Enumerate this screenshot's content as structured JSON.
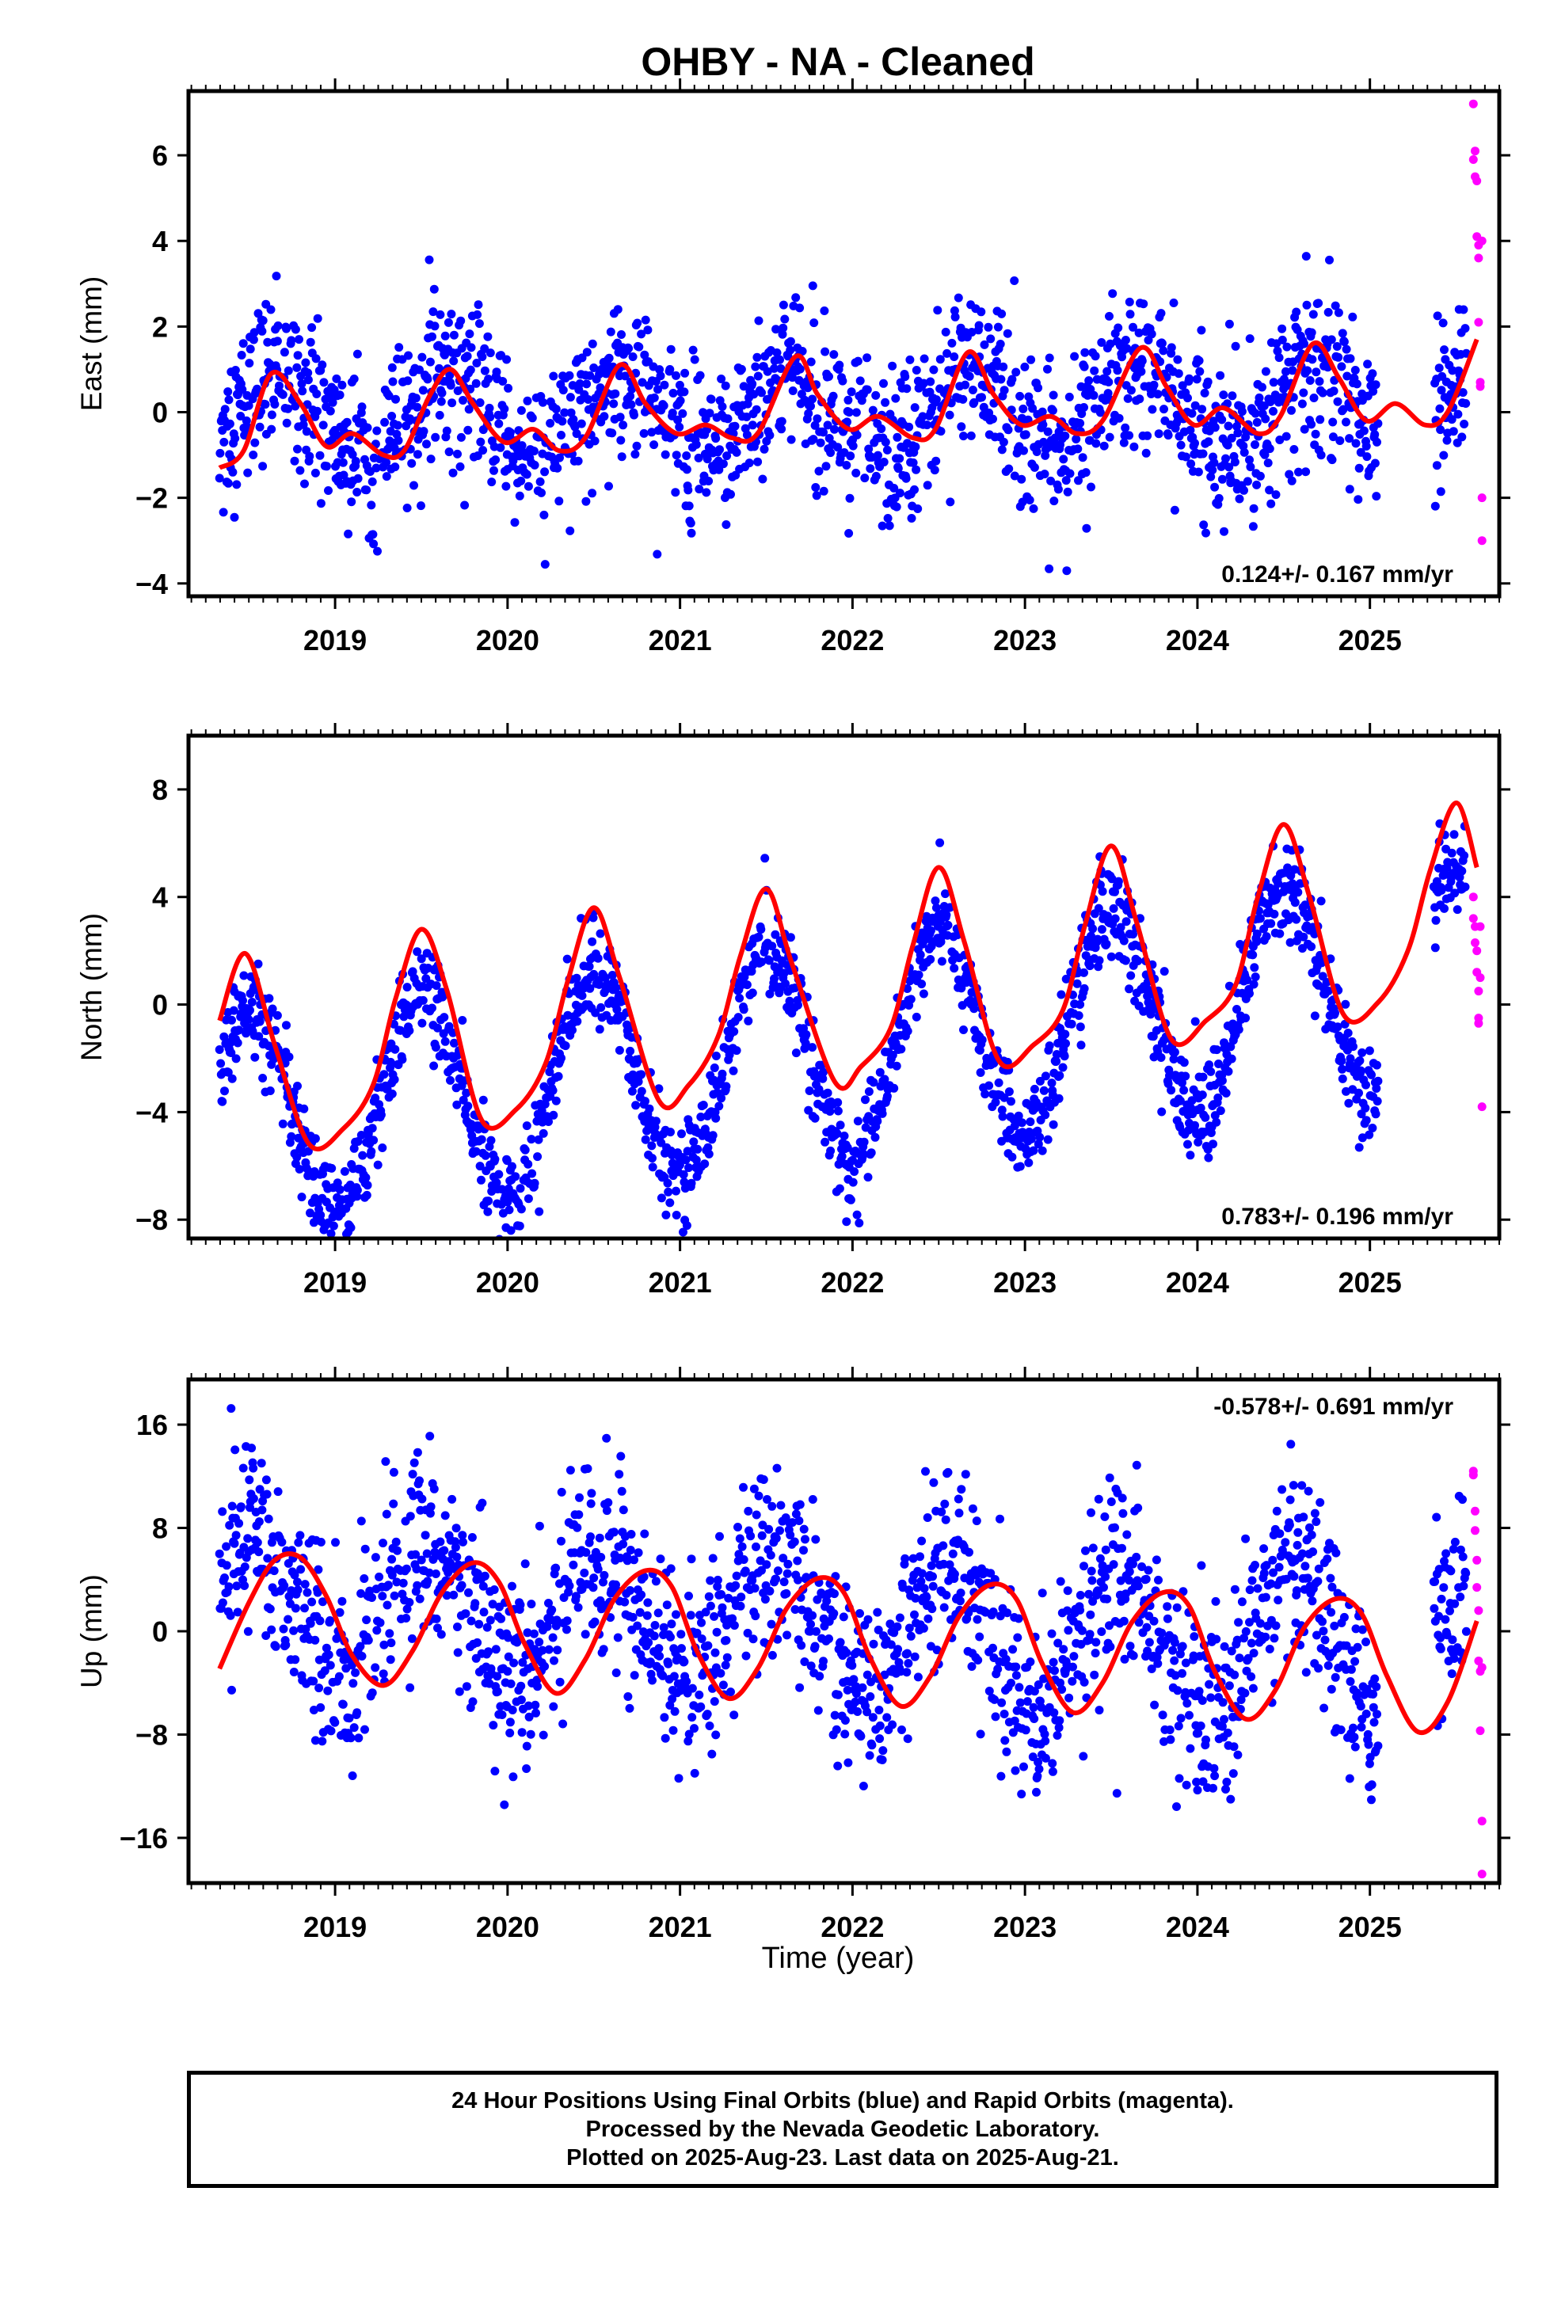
{
  "title": "OHBY  - NA - Cleaned",
  "xlabel": "Time (year)",
  "footer": {
    "line1": "24 Hour Positions Using Final Orbits (blue) and Rapid Orbits (magenta).",
    "line2": "Processed by the Nevada Geodetic Laboratory.",
    "line3": "Plotted on 2025-Aug-23. Last data on 2025-Aug-21."
  },
  "colors": {
    "final": "#0000ff",
    "rapid": "#ff00ff",
    "model": "#ff0000",
    "axes": "#000000"
  },
  "chart_data": [
    {
      "type": "scatter",
      "component": "East",
      "ylabel": "East (mm)",
      "xlim": [
        2018.15,
        2025.75
      ],
      "ylim": [
        -4.3,
        7.5
      ],
      "yticks": [
        -4,
        -2,
        0,
        2,
        4,
        6
      ],
      "xticks": [
        2019,
        2020,
        2021,
        2022,
        2023,
        2024,
        2025
      ],
      "rate_text": "0.124+/- 0.167 mm/yr",
      "rate_position": "bottom-right",
      "data_start": 2018.33,
      "final_end": 2025.56,
      "model": {
        "x": [
          2018.33,
          2018.47,
          2018.63,
          2018.8,
          2018.95,
          2019.1,
          2019.28,
          2019.4,
          2019.55,
          2019.67,
          2019.8,
          2019.98,
          2020.15,
          2020.3,
          2020.45,
          2020.65,
          2020.8,
          2020.98,
          2021.15,
          2021.3,
          2021.45,
          2021.67,
          2021.8,
          2021.98,
          2022.15,
          2022.35,
          2022.48,
          2022.67,
          2022.82,
          2022.98,
          2023.15,
          2023.3,
          2023.45,
          2023.67,
          2023.82,
          2023.98,
          2024.15,
          2024.35,
          2024.48,
          2024.67,
          2024.82,
          2024.98,
          2025.15,
          2025.32,
          2025.45,
          2025.62
        ],
        "y": [
          -1.3,
          -0.9,
          0.9,
          0.2,
          -0.8,
          -0.5,
          -1.0,
          -0.9,
          0.4,
          1.0,
          0.2,
          -0.7,
          -0.4,
          -0.9,
          -0.6,
          1.1,
          0.2,
          -0.5,
          -0.3,
          -0.6,
          -0.5,
          1.3,
          0.4,
          -0.4,
          -0.1,
          -0.6,
          -0.4,
          1.4,
          0.4,
          -0.3,
          -0.1,
          -0.5,
          -0.2,
          1.5,
          0.6,
          -0.3,
          0.1,
          -0.5,
          -0.1,
          1.6,
          0.8,
          -0.2,
          0.2,
          -0.3,
          0.0,
          1.7
        ]
      },
      "seasonal": {
        "amp": 1.0,
        "phase": 2018.67,
        "offset": 0.0,
        "trend": 0.02,
        "noise": 0.9
      },
      "rapid": {
        "x": [
          2025.6,
          2025.6,
          2025.61,
          2025.61,
          2025.62,
          2025.62,
          2025.63,
          2025.63,
          2025.63,
          2025.64,
          2025.64,
          2025.65,
          2025.65,
          2025.65
        ],
        "y": [
          7.2,
          5.9,
          6.1,
          5.5,
          5.4,
          4.1,
          3.6,
          3.9,
          2.1,
          0.7,
          0.6,
          -2.0,
          -3.0,
          4.0
        ]
      }
    },
    {
      "type": "scatter",
      "component": "North",
      "ylabel": "North (mm)",
      "xlim": [
        2018.15,
        2025.75
      ],
      "ylim": [
        -8.7,
        10.0
      ],
      "yticks": [
        -8,
        -4,
        0,
        4,
        8
      ],
      "xticks": [
        2019,
        2020,
        2021,
        2022,
        2023,
        2024,
        2025
      ],
      "rate_text": "0.783+/- 0.196 mm/yr",
      "rate_position": "bottom-right",
      "data_start": 2018.33,
      "final_end": 2025.56,
      "model": {
        "x": [
          2018.33,
          2018.48,
          2018.65,
          2018.85,
          2019.05,
          2019.22,
          2019.35,
          2019.5,
          2019.65,
          2019.85,
          2020.05,
          2020.22,
          2020.35,
          2020.5,
          2020.65,
          2020.88,
          2021.05,
          2021.22,
          2021.35,
          2021.5,
          2021.65,
          2021.9,
          2022.05,
          2022.22,
          2022.35,
          2022.5,
          2022.65,
          2022.85,
          2023.05,
          2023.22,
          2023.35,
          2023.5,
          2023.65,
          2023.85,
          2024.05,
          2024.22,
          2024.35,
          2024.5,
          2024.65,
          2024.85,
          2025.05,
          2025.22,
          2025.35,
          2025.5,
          2025.62
        ],
        "y": [
          -0.6,
          1.9,
          -1.5,
          -5.2,
          -4.6,
          -3.0,
          0.2,
          2.8,
          0.5,
          -4.3,
          -3.9,
          -2.2,
          0.9,
          3.6,
          1.0,
          -3.6,
          -3.0,
          -1.2,
          1.8,
          4.3,
          1.5,
          -2.9,
          -2.3,
          -0.9,
          2.2,
          5.1,
          2.3,
          -2.1,
          -1.5,
          -0.2,
          3.0,
          5.9,
          3.0,
          -1.3,
          -0.6,
          0.7,
          4.0,
          6.7,
          4.0,
          -0.4,
          0.1,
          2.0,
          5.0,
          7.5,
          5.1
        ]
      },
      "seasonal": {
        "amp": 4.0,
        "phase": 2018.5,
        "offset": -1.6,
        "trend": 0.78,
        "noise": 0.9
      },
      "rapid": {
        "x": [
          2025.6,
          2025.6,
          2025.61,
          2025.61,
          2025.62,
          2025.62,
          2025.63,
          2025.63,
          2025.63,
          2025.64,
          2025.64,
          2025.65
        ],
        "y": [
          4.0,
          3.2,
          2.9,
          2.3,
          2.0,
          1.2,
          0.5,
          -0.5,
          -0.7,
          1.0,
          2.9,
          -3.8
        ]
      }
    },
    {
      "type": "scatter",
      "component": "Up",
      "ylabel": "Up (mm)",
      "xlim": [
        2018.15,
        2025.75
      ],
      "ylim": [
        -19.5,
        19.5
      ],
      "yticks": [
        -16,
        -8,
        0,
        8,
        16
      ],
      "xticks": [
        2019,
        2020,
        2021,
        2022,
        2023,
        2024,
        2025
      ],
      "rate_text": "-0.578+/- 0.691 mm/yr",
      "rate_position": "top-right",
      "data_start": 2018.33,
      "final_end": 2025.56,
      "model": {
        "x": [
          2018.33,
          2018.5,
          2018.65,
          2018.8,
          2018.95,
          2019.1,
          2019.28,
          2019.45,
          2019.62,
          2019.8,
          2019.95,
          2020.1,
          2020.28,
          2020.45,
          2020.62,
          2020.8,
          2020.95,
          2021.1,
          2021.28,
          2021.45,
          2021.62,
          2021.8,
          2021.95,
          2022.1,
          2022.28,
          2022.45,
          2022.62,
          2022.8,
          2022.95,
          2023.1,
          2023.28,
          2023.45,
          2023.62,
          2023.8,
          2023.95,
          2024.1,
          2024.28,
          2024.45,
          2024.62,
          2024.8,
          2024.95,
          2025.1,
          2025.28,
          2025.45,
          2025.62
        ],
        "y": [
          -2.9,
          2.2,
          5.5,
          5.7,
          2.7,
          -1.9,
          -4.2,
          -1.5,
          3.0,
          5.3,
          3.8,
          -1.0,
          -4.8,
          -2.2,
          2.5,
          4.7,
          3.5,
          -1.6,
          -5.2,
          -2.9,
          1.8,
          4.1,
          3.0,
          -2.0,
          -5.8,
          -3.5,
          1.2,
          3.6,
          2.5,
          -2.5,
          -6.3,
          -4.0,
          0.7,
          3.0,
          2.0,
          -3.1,
          -6.8,
          -4.6,
          0.3,
          2.5,
          1.4,
          -3.5,
          -7.8,
          -5.5,
          0.8
        ]
      },
      "seasonal": {
        "amp": 5.2,
        "phase": 2018.55,
        "offset": 0.4,
        "trend": -0.55,
        "noise": 3.6
      },
      "rapid": {
        "x": [
          2025.6,
          2025.6,
          2025.61,
          2025.61,
          2025.62,
          2025.62,
          2025.63,
          2025.63,
          2025.64,
          2025.64,
          2025.65,
          2025.65,
          2025.65
        ],
        "y": [
          12.4,
          12.1,
          9.3,
          7.8,
          5.5,
          3.4,
          1.6,
          -2.3,
          -3.1,
          -7.7,
          -14.7,
          -18.8,
          -2.8
        ]
      }
    }
  ]
}
